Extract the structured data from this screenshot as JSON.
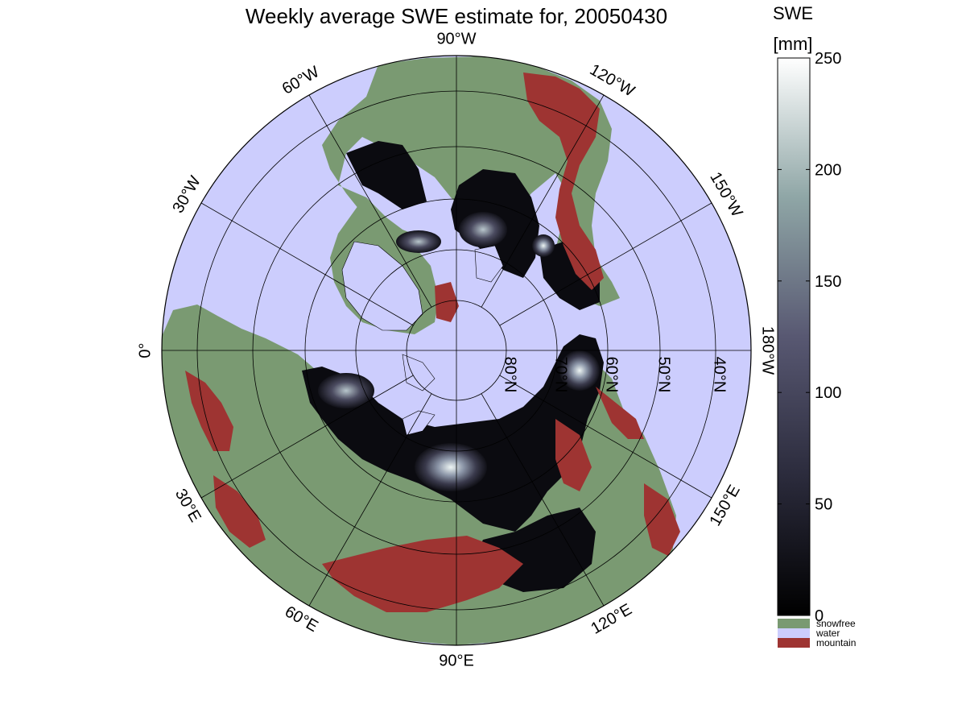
{
  "figure": {
    "title": "Weekly average SWE estimate for, 20050430",
    "colorbar_title_line1": "SWE",
    "colorbar_title_line2": "[mm]"
  },
  "map": {
    "projection": "north-polar-stereographic",
    "longitude_labels": [
      {
        "text": "90°W",
        "lon_deg": -90
      },
      {
        "text": "120°W",
        "lon_deg": -120
      },
      {
        "text": "150°W",
        "lon_deg": -150
      },
      {
        "text": "180°W",
        "lon_deg": 180
      },
      {
        "text": "150°E",
        "lon_deg": 150
      },
      {
        "text": "120°E",
        "lon_deg": 120
      },
      {
        "text": "90°E",
        "lon_deg": 90
      },
      {
        "text": "60°E",
        "lon_deg": 60
      },
      {
        "text": "30°E",
        "lon_deg": 30
      },
      {
        "text": "0°",
        "lon_deg": 0
      },
      {
        "text": "30°W",
        "lon_deg": -30
      },
      {
        "text": "60°W",
        "lon_deg": -60
      }
    ],
    "latitude_labels": [
      {
        "text": "80°N",
        "lat_deg": 80
      },
      {
        "text": "70°N",
        "lat_deg": 70
      },
      {
        "text": "60°N",
        "lat_deg": 60
      },
      {
        "text": "50°N",
        "lat_deg": 50
      },
      {
        "text": "40°N",
        "lat_deg": 40
      }
    ],
    "meridian_interval_deg": 30,
    "parallels_deg": [
      80,
      70,
      60,
      50,
      40
    ]
  },
  "colorbar": {
    "min": 0,
    "max": 250,
    "tick_values": [
      0,
      50,
      100,
      150,
      200,
      250
    ],
    "tick_labels": [
      "0",
      "50",
      "100",
      "150",
      "200",
      "250"
    ],
    "colormap": "bone"
  },
  "legend": [
    {
      "label": "snowfree",
      "color": "#7a9a72"
    },
    {
      "label": "water",
      "color": "#cccdfd"
    },
    {
      "label": "mountain",
      "color": "#9e3432"
    }
  ],
  "colors": {
    "water": "#cccdfd",
    "snowfree": "#7a9a72",
    "mountain": "#9e3432",
    "snow_low": "#0b0b10",
    "snow_high": "#e6f2f0",
    "grid": "#000000"
  }
}
